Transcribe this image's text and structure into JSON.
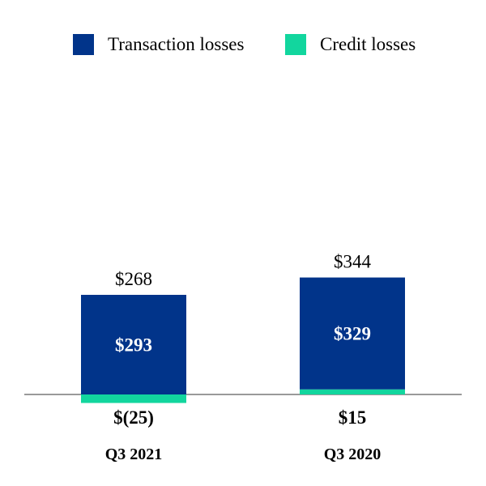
{
  "legend": {
    "transaction_label": "Transaction losses",
    "credit_label": "Credit losses"
  },
  "colors": {
    "transaction": "#01348A",
    "credit": "#12D69E",
    "baseline": "#9A9A9A"
  },
  "chart_data": {
    "type": "bar",
    "stacked": true,
    "categories": [
      "Q3 2021",
      "Q3 2020"
    ],
    "series": [
      {
        "name": "Transaction losses",
        "values": [
          293,
          329
        ],
        "labels": [
          "$293",
          "$329"
        ]
      },
      {
        "name": "Credit losses",
        "values": [
          -25,
          15
        ],
        "labels": [
          "$(25)",
          "$15"
        ]
      }
    ],
    "totals": [
      268,
      344
    ],
    "total_labels": [
      "$268",
      "$344"
    ],
    "grid": false,
    "legend_position": "top"
  }
}
